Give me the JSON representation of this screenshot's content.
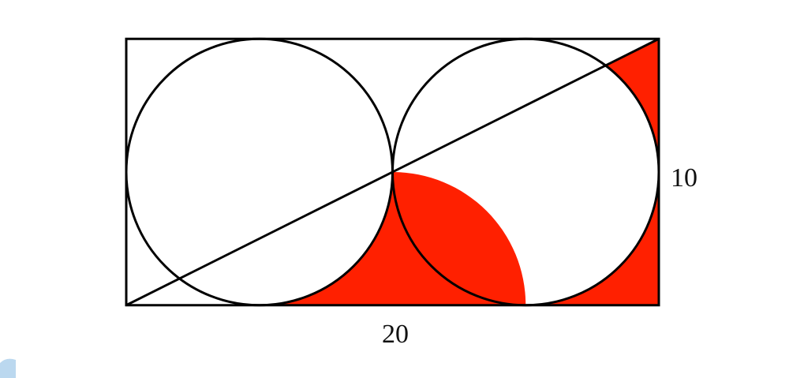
{
  "figure": {
    "labels": {
      "height_value": "10",
      "width_value": "20"
    },
    "colors": {
      "stroke": "#000000",
      "shaded_region": "#ff2000",
      "background": "#ffffff",
      "corner_mark": "#9ec8e8"
    },
    "shapes": {
      "rectangle": "rectangle-outline",
      "circles": [
        "left-circle",
        "right-circle"
      ],
      "diagonal": "diagonal-line",
      "shaded": [
        "shaded-region-upper-right",
        "shaded-region-lower"
      ]
    }
  }
}
